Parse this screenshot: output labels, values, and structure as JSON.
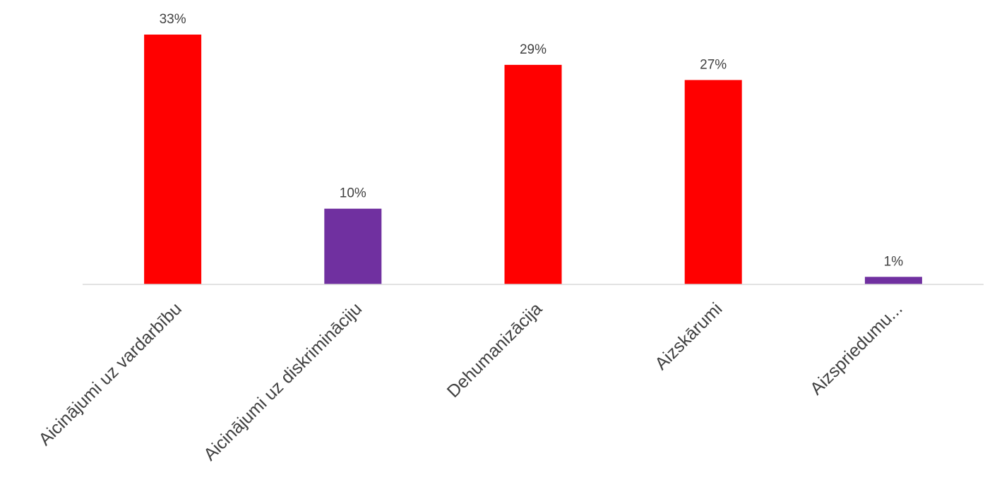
{
  "chart_data": {
    "type": "bar",
    "title": "",
    "xlabel": "",
    "ylabel": "",
    "categories": [
      "Aicinājumi uz vardarbību",
      "Aicinājumi uz diskrimināciju",
      "Dehumanizācija",
      "Aizskārumi",
      "Aizspriedumu..."
    ],
    "values": [
      33,
      10,
      29,
      27,
      1
    ],
    "value_labels": [
      "33%",
      "10%",
      "29%",
      "27%",
      "1%"
    ],
    "bar_colors": [
      "#ff0000",
      "#7030a0",
      "#ff0000",
      "#ff0000",
      "#7030a0"
    ],
    "axis_color": "#d9d9d9",
    "label_color": "#404040",
    "ylim": [
      0,
      33
    ],
    "grid": false,
    "legend": "none"
  }
}
